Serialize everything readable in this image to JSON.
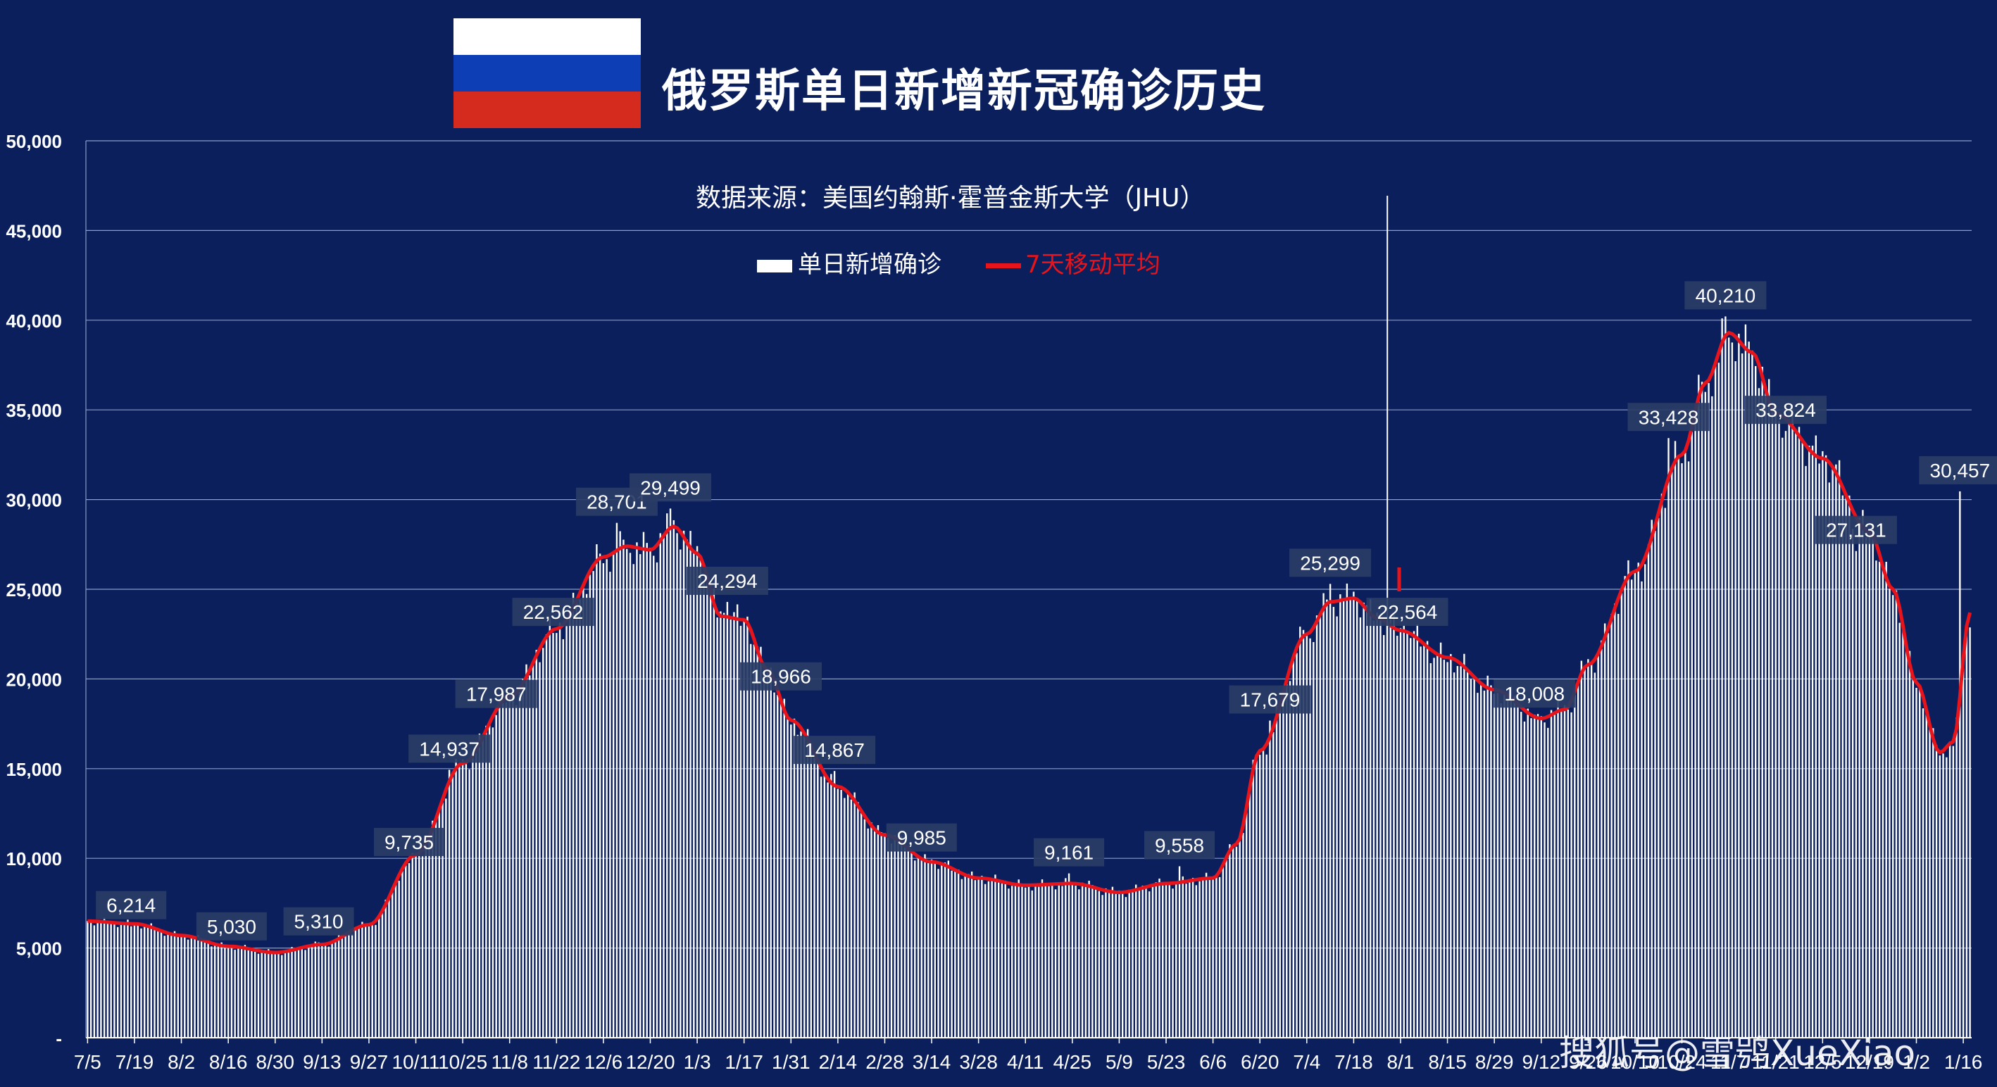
{
  "title": "俄罗斯单日新增新冠确诊历史",
  "source": "数据来源：美国约翰斯·霍普金斯大学（JHU）",
  "watermark": "搜狐号@雪鸮XueXiao",
  "colors": {
    "background": "#0b1f5c",
    "bars": "#ffffff",
    "moving_average": "#e8141b",
    "label_box": "#2a3d66",
    "flag": [
      "#ffffff",
      "#0d3eb5",
      "#d52b1e"
    ]
  },
  "chart_data": {
    "type": "bar",
    "legend": {
      "bars": "单日新增确诊",
      "line": "7天移动平均",
      "placement": "top-center"
    },
    "ylim": [
      0,
      50000
    ],
    "y_ticks": [
      0,
      5000,
      10000,
      15000,
      20000,
      25000,
      30000,
      35000,
      40000,
      45000,
      50000
    ],
    "y_tick_labels": [
      "-",
      "5,000",
      "10,000",
      "15,000",
      "20,000",
      "25,000",
      "30,000",
      "35,000",
      "40,000",
      "45,000",
      "50,000"
    ],
    "x_start": "2020-07-05",
    "x_end": "2022-01-18",
    "x_tick_labels": [
      "7/5",
      "7/19",
      "8/2",
      "8/16",
      "8/30",
      "9/13",
      "9/27",
      "10/11",
      "10/25",
      "11/8",
      "11/22",
      "12/6",
      "12/20",
      "1/3",
      "1/17",
      "1/31",
      "2/14",
      "2/28",
      "3/14",
      "3/28",
      "4/11",
      "4/25",
      "5/9",
      "5/23",
      "6/6",
      "6/20",
      "7/4",
      "7/18",
      "8/1",
      "8/15",
      "8/29",
      "9/12",
      "9/26",
      "10/10",
      "10/24",
      "11/7",
      "11/21",
      "12/5",
      "12/19",
      "1/2",
      "1/16"
    ],
    "grid": true,
    "marker_date": "2021-07-27",
    "moving_average_keypoints": [
      [
        "2020-07-05",
        6500
      ],
      [
        "2020-07-19",
        6350
      ],
      [
        "2020-08-02",
        5700
      ],
      [
        "2020-08-16",
        5100
      ],
      [
        "2020-08-30",
        4750
      ],
      [
        "2020-09-13",
        5200
      ],
      [
        "2020-09-27",
        6300
      ],
      [
        "2020-10-11",
        10200
      ],
      [
        "2020-10-25",
        15300
      ],
      [
        "2020-11-08",
        19000
      ],
      [
        "2020-11-22",
        22800
      ],
      [
        "2020-12-06",
        26800
      ],
      [
        "2020-12-13",
        27400
      ],
      [
        "2020-12-20",
        27200
      ],
      [
        "2020-12-27",
        28500
      ],
      [
        "2021-01-03",
        27000
      ],
      [
        "2021-01-10",
        23500
      ],
      [
        "2021-01-17",
        23300
      ],
      [
        "2021-01-24",
        20500
      ],
      [
        "2021-01-31",
        17700
      ],
      [
        "2021-02-14",
        14000
      ],
      [
        "2021-02-28",
        11300
      ],
      [
        "2021-03-14",
        9800
      ],
      [
        "2021-03-28",
        8900
      ],
      [
        "2021-04-11",
        8500
      ],
      [
        "2021-04-25",
        8600
      ],
      [
        "2021-05-09",
        8100
      ],
      [
        "2021-05-23",
        8600
      ],
      [
        "2021-06-06",
        8900
      ],
      [
        "2021-06-13",
        10800
      ],
      [
        "2021-06-20",
        16000
      ],
      [
        "2021-07-04",
        22500
      ],
      [
        "2021-07-11",
        24300
      ],
      [
        "2021-07-18",
        24500
      ],
      [
        "2021-07-25",
        23400
      ],
      [
        "2021-08-01",
        22700
      ],
      [
        "2021-08-15",
        21200
      ],
      [
        "2021-08-29",
        19400
      ],
      [
        "2021-09-12",
        17800
      ],
      [
        "2021-09-19",
        18300
      ],
      [
        "2021-09-26",
        20800
      ],
      [
        "2021-10-10",
        26000
      ],
      [
        "2021-10-24",
        32500
      ],
      [
        "2021-10-31",
        36500
      ],
      [
        "2021-11-07",
        39300
      ],
      [
        "2021-11-14",
        38200
      ],
      [
        "2021-11-21",
        34800
      ],
      [
        "2021-12-05",
        32300
      ],
      [
        "2021-12-19",
        28200
      ],
      [
        "2021-12-26",
        25000
      ],
      [
        "2022-01-02",
        19800
      ],
      [
        "2022-01-09",
        15900
      ],
      [
        "2022-01-13",
        16500
      ],
      [
        "2022-01-18",
        23700
      ]
    ],
    "data_labels": [
      {
        "date": "2020-07-18",
        "value": 6214,
        "text": "6,214"
      },
      {
        "date": "2020-08-17",
        "value": 5030,
        "text": "5,030"
      },
      {
        "date": "2020-09-12",
        "value": 5310,
        "text": "5,310"
      },
      {
        "date": "2020-10-09",
        "value": 9735,
        "text": "9,735"
      },
      {
        "date": "2020-10-21",
        "value": 14937,
        "text": "14,937"
      },
      {
        "date": "2020-11-04",
        "value": 17987,
        "text": "17,987"
      },
      {
        "date": "2020-11-21",
        "value": 22562,
        "text": "22,562"
      },
      {
        "date": "2020-12-10",
        "value": 28701,
        "text": "28,701"
      },
      {
        "date": "2020-12-26",
        "value": 29499,
        "text": "29,499"
      },
      {
        "date": "2021-01-12",
        "value": 24294,
        "text": "24,294"
      },
      {
        "date": "2021-01-28",
        "value": 18966,
        "text": "18,966"
      },
      {
        "date": "2021-02-13",
        "value": 14867,
        "text": "14,867"
      },
      {
        "date": "2021-03-11",
        "value": 9985,
        "text": "9,985"
      },
      {
        "date": "2021-04-24",
        "value": 9161,
        "text": "9,161"
      },
      {
        "date": "2021-05-27",
        "value": 9558,
        "text": "9,558"
      },
      {
        "date": "2021-06-23",
        "value": 17679,
        "text": "17,679"
      },
      {
        "date": "2021-07-11",
        "value": 25299,
        "text": "25,299"
      },
      {
        "date": "2021-08-03",
        "value": 22564,
        "text": "22,564"
      },
      {
        "date": "2021-09-10",
        "value": 18008,
        "text": "18,008"
      },
      {
        "date": "2021-10-20",
        "value": 33428,
        "text": "33,428"
      },
      {
        "date": "2021-11-06",
        "value": 40210,
        "text": "40,210"
      },
      {
        "date": "2021-11-24",
        "value": 33824,
        "text": "33,824"
      },
      {
        "date": "2021-12-15",
        "value": 27131,
        "text": "27,131"
      },
      {
        "date": "2022-01-15",
        "value": 30457,
        "text": "30,457"
      }
    ]
  }
}
